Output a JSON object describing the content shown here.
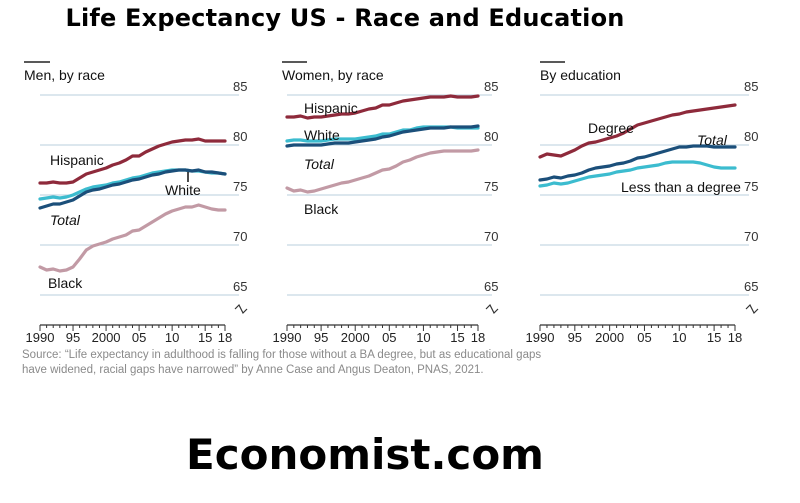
{
  "page": {
    "title": "Life Expectancy US - Race and Education",
    "footer": "Economist.com",
    "source": "Source: “Life expectancy in adulthood is falling for those without a BA degree, but as educational gaps have widened, racial gaps have narrowed” by Anne Case and Angus Deaton, PNAS, 2021."
  },
  "colors": {
    "hispanic": "#8e2a3b",
    "degree": "#8e2a3b",
    "white": "#3cbccf",
    "less_degree": "#3cbccf",
    "total": "#1b4f7a",
    "black": "#c29aa5",
    "grid": "#b9cfdc",
    "axis": "#333333"
  },
  "chart_data": [
    {
      "type": "line",
      "title": "Men, by race",
      "xlim": [
        1990,
        2018
      ],
      "ylim": [
        65,
        85
      ],
      "yticks": [
        65,
        70,
        75,
        80,
        85
      ],
      "xticks": [
        1990,
        1995,
        2000,
        2005,
        2010,
        2015,
        2018
      ],
      "xtick_labels": [
        "1990",
        "95",
        "2000",
        "05",
        "10",
        "15",
        "18"
      ],
      "series": [
        {
          "name": "Hispanic",
          "color_key": "hispanic",
          "x": [
            1990,
            1991,
            1992,
            1993,
            1994,
            1995,
            1996,
            1997,
            1998,
            1999,
            2000,
            2001,
            2002,
            2003,
            2004,
            2005,
            2006,
            2007,
            2008,
            2009,
            2010,
            2011,
            2012,
            2013,
            2014,
            2015,
            2016,
            2017,
            2018
          ],
          "values": [
            76.2,
            76.2,
            76.3,
            76.2,
            76.2,
            76.3,
            76.7,
            77.1,
            77.3,
            77.5,
            77.7,
            78.0,
            78.2,
            78.5,
            78.9,
            78.9,
            79.3,
            79.6,
            79.9,
            80.1,
            80.3,
            80.4,
            80.5,
            80.5,
            80.6,
            80.4,
            80.4,
            80.4,
            80.4
          ]
        },
        {
          "name": "White",
          "color_key": "white",
          "x": [
            1990,
            1991,
            1992,
            1993,
            1994,
            1995,
            1996,
            1997,
            1998,
            1999,
            2000,
            2001,
            2002,
            2003,
            2004,
            2005,
            2006,
            2007,
            2008,
            2009,
            2010,
            2011,
            2012,
            2013,
            2014,
            2015,
            2016,
            2017,
            2018
          ],
          "values": [
            74.6,
            74.7,
            74.8,
            74.7,
            74.8,
            75.0,
            75.3,
            75.6,
            75.8,
            75.9,
            76.0,
            76.2,
            76.3,
            76.5,
            76.7,
            76.8,
            77.0,
            77.2,
            77.3,
            77.4,
            77.5,
            77.5,
            77.5,
            77.4,
            77.4,
            77.3,
            77.2,
            77.2,
            77.1
          ]
        },
        {
          "name": "Total",
          "color_key": "total",
          "x": [
            1990,
            1991,
            1992,
            1993,
            1994,
            1995,
            1996,
            1997,
            1998,
            1999,
            2000,
            2001,
            2002,
            2003,
            2004,
            2005,
            2006,
            2007,
            2008,
            2009,
            2010,
            2011,
            2012,
            2013,
            2014,
            2015,
            2016,
            2017,
            2018
          ],
          "values": [
            73.7,
            73.9,
            74.1,
            74.1,
            74.3,
            74.5,
            74.9,
            75.3,
            75.5,
            75.6,
            75.8,
            76.0,
            76.1,
            76.3,
            76.5,
            76.6,
            76.8,
            77.0,
            77.1,
            77.3,
            77.4,
            77.5,
            77.5,
            77.4,
            77.5,
            77.3,
            77.3,
            77.2,
            77.1
          ]
        },
        {
          "name": "Black",
          "color_key": "black",
          "x": [
            1990,
            1991,
            1992,
            1993,
            1994,
            1995,
            1996,
            1997,
            1998,
            1999,
            2000,
            2001,
            2002,
            2003,
            2004,
            2005,
            2006,
            2007,
            2008,
            2009,
            2010,
            2011,
            2012,
            2013,
            2014,
            2015,
            2016,
            2017,
            2018
          ],
          "values": [
            67.8,
            67.5,
            67.6,
            67.4,
            67.5,
            67.8,
            68.6,
            69.5,
            69.9,
            70.1,
            70.3,
            70.6,
            70.8,
            71.0,
            71.4,
            71.5,
            71.9,
            72.3,
            72.7,
            73.1,
            73.4,
            73.6,
            73.8,
            73.8,
            74.0,
            73.8,
            73.6,
            73.5,
            73.5
          ]
        }
      ],
      "annotations": [
        {
          "text": "Hispanic",
          "series": "Hispanic"
        },
        {
          "text": "White",
          "series": "White"
        },
        {
          "text": "Total",
          "series": "Total"
        },
        {
          "text": "Black",
          "series": "Black"
        }
      ]
    },
    {
      "type": "line",
      "title": "Women, by race",
      "xlim": [
        1990,
        2018
      ],
      "ylim": [
        65,
        85
      ],
      "yticks": [
        65,
        70,
        75,
        80,
        85
      ],
      "xticks": [
        1990,
        1995,
        2000,
        2005,
        2010,
        2015,
        2018
      ],
      "xtick_labels": [
        "1990",
        "95",
        "2000",
        "05",
        "10",
        "15",
        "18"
      ],
      "series": [
        {
          "name": "Hispanic",
          "color_key": "hispanic",
          "x": [
            1990,
            1991,
            1992,
            1993,
            1994,
            1995,
            1996,
            1997,
            1998,
            1999,
            2000,
            2001,
            2002,
            2003,
            2004,
            2005,
            2006,
            2007,
            2008,
            2009,
            2010,
            2011,
            2012,
            2013,
            2014,
            2015,
            2016,
            2017,
            2018
          ],
          "values": [
            82.8,
            82.8,
            82.9,
            82.7,
            82.8,
            82.8,
            82.9,
            83.0,
            83.1,
            83.1,
            83.2,
            83.4,
            83.6,
            83.7,
            84.0,
            84.0,
            84.2,
            84.4,
            84.5,
            84.6,
            84.7,
            84.8,
            84.8,
            84.8,
            84.9,
            84.8,
            84.8,
            84.8,
            84.9
          ]
        },
        {
          "name": "White",
          "color_key": "white",
          "x": [
            1990,
            1991,
            1992,
            1993,
            1994,
            1995,
            1996,
            1997,
            1998,
            1999,
            2000,
            2001,
            2002,
            2003,
            2004,
            2005,
            2006,
            2007,
            2008,
            2009,
            2010,
            2011,
            2012,
            2013,
            2014,
            2015,
            2016,
            2017,
            2018
          ],
          "values": [
            80.4,
            80.5,
            80.5,
            80.4,
            80.4,
            80.4,
            80.5,
            80.6,
            80.6,
            80.6,
            80.6,
            80.7,
            80.8,
            80.9,
            81.1,
            81.1,
            81.3,
            81.5,
            81.5,
            81.7,
            81.8,
            81.8,
            81.8,
            81.8,
            81.8,
            81.7,
            81.7,
            81.7,
            81.7
          ]
        },
        {
          "name": "Total",
          "color_key": "total",
          "x": [
            1990,
            1991,
            1992,
            1993,
            1994,
            1995,
            1996,
            1997,
            1998,
            1999,
            2000,
            2001,
            2002,
            2003,
            2004,
            2005,
            2006,
            2007,
            2008,
            2009,
            2010,
            2011,
            2012,
            2013,
            2014,
            2015,
            2016,
            2017,
            2018
          ],
          "values": [
            79.9,
            80.0,
            80.0,
            80.0,
            80.0,
            80.0,
            80.1,
            80.2,
            80.2,
            80.2,
            80.3,
            80.4,
            80.5,
            80.6,
            80.8,
            80.9,
            81.1,
            81.3,
            81.4,
            81.5,
            81.6,
            81.7,
            81.7,
            81.7,
            81.8,
            81.8,
            81.8,
            81.8,
            81.9
          ]
        },
        {
          "name": "Black",
          "color_key": "black",
          "x": [
            1990,
            1991,
            1992,
            1993,
            1994,
            1995,
            1996,
            1997,
            1998,
            1999,
            2000,
            2001,
            2002,
            2003,
            2004,
            2005,
            2006,
            2007,
            2008,
            2009,
            2010,
            2011,
            2012,
            2013,
            2014,
            2015,
            2016,
            2017,
            2018
          ],
          "values": [
            75.7,
            75.4,
            75.5,
            75.3,
            75.4,
            75.6,
            75.8,
            76.0,
            76.2,
            76.3,
            76.5,
            76.7,
            76.9,
            77.2,
            77.5,
            77.6,
            77.9,
            78.3,
            78.5,
            78.8,
            79.0,
            79.2,
            79.3,
            79.4,
            79.4,
            79.4,
            79.4,
            79.4,
            79.5
          ]
        }
      ],
      "annotations": [
        {
          "text": "Hispanic",
          "series": "Hispanic"
        },
        {
          "text": "White",
          "series": "White"
        },
        {
          "text": "Total",
          "series": "Total"
        },
        {
          "text": "Black",
          "series": "Black"
        }
      ]
    },
    {
      "type": "line",
      "title": "By education",
      "xlim": [
        1990,
        2018
      ],
      "ylim": [
        65,
        85
      ],
      "yticks": [
        65,
        70,
        75,
        80,
        85
      ],
      "xticks": [
        1990,
        1995,
        2000,
        2005,
        2010,
        2015,
        2018
      ],
      "xtick_labels": [
        "1990",
        "95",
        "2000",
        "05",
        "10",
        "15",
        "18"
      ],
      "series": [
        {
          "name": "Degree",
          "color_key": "degree",
          "x": [
            1990,
            1991,
            1992,
            1993,
            1994,
            1995,
            1996,
            1997,
            1998,
            1999,
            2000,
            2001,
            2002,
            2003,
            2004,
            2005,
            2006,
            2007,
            2008,
            2009,
            2010,
            2011,
            2012,
            2013,
            2014,
            2015,
            2016,
            2017,
            2018
          ],
          "values": [
            78.8,
            79.1,
            79.0,
            78.9,
            79.2,
            79.5,
            79.9,
            80.2,
            80.3,
            80.5,
            80.7,
            80.9,
            81.2,
            81.6,
            82.0,
            82.2,
            82.4,
            82.6,
            82.8,
            83.0,
            83.1,
            83.3,
            83.4,
            83.5,
            83.6,
            83.7,
            83.8,
            83.9,
            84.0
          ]
        },
        {
          "name": "Total",
          "color_key": "total",
          "x": [
            1990,
            1991,
            1992,
            1993,
            1994,
            1995,
            1996,
            1997,
            1998,
            1999,
            2000,
            2001,
            2002,
            2003,
            2004,
            2005,
            2006,
            2007,
            2008,
            2009,
            2010,
            2011,
            2012,
            2013,
            2014,
            2015,
            2016,
            2017,
            2018
          ],
          "values": [
            76.5,
            76.6,
            76.8,
            76.7,
            76.9,
            77.0,
            77.2,
            77.5,
            77.7,
            77.8,
            77.9,
            78.1,
            78.2,
            78.4,
            78.7,
            78.8,
            79.0,
            79.2,
            79.4,
            79.6,
            79.8,
            79.8,
            79.9,
            79.9,
            79.9,
            79.8,
            79.8,
            79.8,
            79.8
          ]
        },
        {
          "name": "Less than a degree",
          "color_key": "less_degree",
          "x": [
            1990,
            1991,
            1992,
            1993,
            1994,
            1995,
            1996,
            1997,
            1998,
            1999,
            2000,
            2001,
            2002,
            2003,
            2004,
            2005,
            2006,
            2007,
            2008,
            2009,
            2010,
            2011,
            2012,
            2013,
            2014,
            2015,
            2016,
            2017,
            2018
          ],
          "values": [
            75.9,
            76.0,
            76.2,
            76.1,
            76.2,
            76.4,
            76.6,
            76.8,
            76.9,
            77.0,
            77.1,
            77.3,
            77.4,
            77.5,
            77.7,
            77.8,
            77.9,
            78.0,
            78.2,
            78.3,
            78.3,
            78.3,
            78.3,
            78.2,
            78.0,
            77.8,
            77.7,
            77.7,
            77.7
          ]
        }
      ],
      "annotations": [
        {
          "text": "Degree",
          "series": "Degree"
        },
        {
          "text": "Total",
          "series": "Total"
        },
        {
          "text": "Less than a degree",
          "series": "Less than a degree"
        }
      ]
    }
  ]
}
